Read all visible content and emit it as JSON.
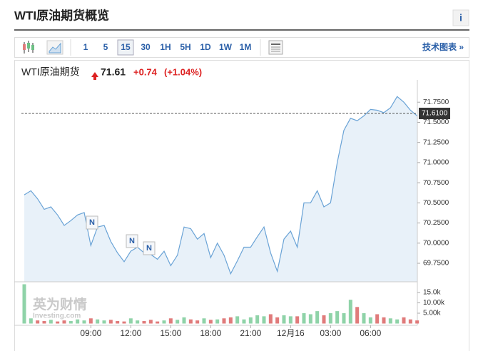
{
  "header": {
    "title": "WTI原油期货概览",
    "info": "i"
  },
  "toolbar": {
    "intervals": [
      "1",
      "5",
      "15",
      "30",
      "1H",
      "5H",
      "1D",
      "1W",
      "1M"
    ],
    "selected": "15",
    "link": "技术图表 »"
  },
  "quote": {
    "name": "WTI原油期货",
    "price": "71.61",
    "change": "+0.74",
    "percent": "(+1.04%)"
  },
  "chart_data": {
    "type": "line",
    "categories": [
      null,
      null,
      null,
      null,
      null,
      null,
      null,
      null,
      null,
      null,
      "09:00",
      null,
      null,
      null,
      null,
      null,
      "12:00",
      null,
      null,
      null,
      null,
      null,
      "15:00",
      null,
      null,
      null,
      null,
      null,
      "18:00",
      null,
      null,
      null,
      null,
      null,
      "21:00",
      null,
      null,
      null,
      null,
      null,
      "12月16",
      null,
      null,
      null,
      null,
      null,
      "03:00",
      null,
      null,
      null,
      null,
      null,
      "06:00",
      null,
      null,
      null,
      null,
      null,
      null,
      null
    ],
    "series": [
      {
        "name": "WTI原油期货",
        "color": "#6aa3d6",
        "values": [
          70.6,
          70.65,
          70.55,
          70.42,
          70.45,
          70.35,
          70.22,
          70.28,
          70.35,
          70.38,
          69.97,
          70.2,
          70.22,
          70.02,
          69.88,
          69.77,
          69.9,
          69.95,
          69.88,
          69.86,
          69.8,
          69.9,
          69.72,
          69.85,
          70.2,
          70.18,
          70.05,
          70.12,
          69.82,
          70.0,
          69.85,
          69.62,
          69.78,
          69.95,
          69.95,
          70.08,
          70.2,
          69.88,
          69.65,
          70.05,
          70.15,
          69.95,
          70.5,
          70.5,
          70.65,
          70.45,
          70.5,
          71.0,
          71.4,
          71.55,
          71.52,
          71.58,
          71.66,
          71.65,
          71.62,
          71.68,
          71.82,
          71.75,
          71.65,
          71.58
        ]
      }
    ],
    "area_color": "#e8f1f9",
    "ylim": [
      69.52,
      72.0
    ],
    "yticks": [
      {
        "value": 71.75,
        "label": "71.7500"
      },
      {
        "value": 71.5,
        "label": "71.5000"
      },
      {
        "value": 71.25,
        "label": "71.2500"
      },
      {
        "value": 71.0,
        "label": "71.0000"
      },
      {
        "value": 70.75,
        "label": "70.7500"
      },
      {
        "value": 70.5,
        "label": "70.5000"
      },
      {
        "value": 70.25,
        "label": "70.2500"
      },
      {
        "value": 70.0,
        "label": "70.0000"
      },
      {
        "value": 69.75,
        "label": "69.7500"
      }
    ],
    "current": {
      "value": 71.61,
      "label": "71.6100"
    },
    "annotations": [
      "N",
      "N",
      "N"
    ],
    "volume": {
      "values": [
        19000,
        2500,
        1500,
        1200,
        1800,
        1000,
        1500,
        1200,
        2000,
        1500,
        2500,
        2000,
        1500,
        1800,
        1200,
        1000,
        2500,
        1500,
        1200,
        1800,
        1000,
        1500,
        2500,
        1800,
        3000,
        2000,
        1500,
        2500,
        1800,
        2000,
        2500,
        3000,
        3500,
        2000,
        3000,
        4000,
        3500,
        4500,
        3000,
        4000,
        3500,
        3500,
        5000,
        4500,
        6000,
        4000,
        5000,
        6000,
        5000,
        11500,
        8000,
        5000,
        3000,
        4500,
        3000,
        2500,
        2000,
        3000,
        2000,
        1500
      ],
      "up_color": "#8fd3a8",
      "down_color": "#e07b7b",
      "ylim": [
        0,
        19500
      ],
      "yticks": [
        {
          "value": 15000,
          "label": "15.0k"
        },
        {
          "value": 10000,
          "label": "10.00k"
        },
        {
          "value": 5000,
          "label": "5.00k"
        }
      ]
    },
    "watermark": [
      "英为财情",
      "Investing.com"
    ]
  }
}
